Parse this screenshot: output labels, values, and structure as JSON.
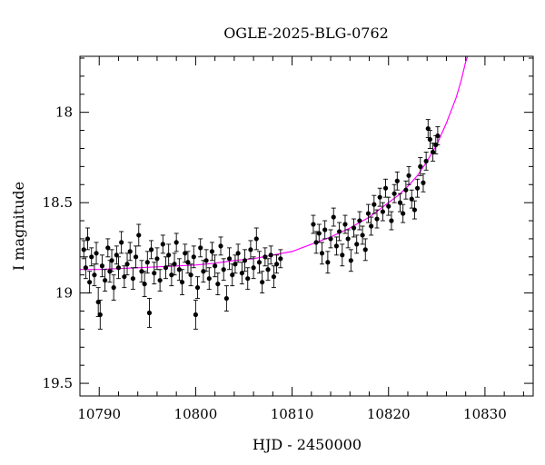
{
  "chart_data": {
    "type": "scatter",
    "title": "OGLE-2025-BLG-0762",
    "xlabel": "HJD - 2450000",
    "ylabel": "I magnitude",
    "xlim": [
      10788,
      10835
    ],
    "ylim": [
      19.57,
      17.69
    ],
    "y_inverted": true,
    "xticks": [
      10790,
      10800,
      10810,
      10820,
      10830
    ],
    "xtick_labels": [
      "10790",
      "10800",
      "10810",
      "10820",
      "10830"
    ],
    "yticks": [
      18,
      18.5,
      19,
      19.5
    ],
    "ytick_labels": [
      "18",
      "18.5",
      "19",
      "19.5"
    ],
    "grid": false,
    "colors": {
      "points": "#000000",
      "model": "#ff00ff",
      "frame": "#000000"
    },
    "series": [
      {
        "kind": "points-with-errorbars",
        "points": [
          [
            10788.4,
            18.76,
            0.05
          ],
          [
            10788.6,
            18.86,
            0.06
          ],
          [
            10788.8,
            18.7,
            0.06
          ],
          [
            10789.0,
            18.94,
            0.06
          ],
          [
            10789.2,
            18.8,
            0.05
          ],
          [
            10789.5,
            18.9,
            0.06
          ],
          [
            10789.7,
            18.78,
            0.06
          ],
          [
            10789.9,
            19.05,
            0.08
          ],
          [
            10790.1,
            19.12,
            0.08
          ],
          [
            10790.3,
            18.85,
            0.06
          ],
          [
            10790.6,
            18.93,
            0.06
          ],
          [
            10790.9,
            18.75,
            0.05
          ],
          [
            10791.1,
            18.88,
            0.06
          ],
          [
            10791.3,
            18.82,
            0.06
          ],
          [
            10791.5,
            18.97,
            0.07
          ],
          [
            10791.8,
            18.79,
            0.05
          ],
          [
            10792.0,
            18.86,
            0.06
          ],
          [
            10792.3,
            18.72,
            0.06
          ],
          [
            10792.6,
            18.91,
            0.06
          ],
          [
            10792.9,
            18.84,
            0.06
          ],
          [
            10793.2,
            18.77,
            0.05
          ],
          [
            10793.5,
            18.92,
            0.06
          ],
          [
            10793.8,
            18.8,
            0.06
          ],
          [
            10794.1,
            18.68,
            0.06
          ],
          [
            10794.4,
            18.88,
            0.06
          ],
          [
            10794.7,
            18.95,
            0.07
          ],
          [
            10795.0,
            18.83,
            0.06
          ],
          [
            10795.2,
            19.11,
            0.08
          ],
          [
            10795.4,
            18.76,
            0.05
          ],
          [
            10795.7,
            18.89,
            0.06
          ],
          [
            10796.0,
            18.81,
            0.06
          ],
          [
            10796.3,
            18.93,
            0.06
          ],
          [
            10796.6,
            18.73,
            0.05
          ],
          [
            10796.9,
            18.86,
            0.06
          ],
          [
            10797.2,
            18.79,
            0.06
          ],
          [
            10797.5,
            18.9,
            0.06
          ],
          [
            10797.8,
            18.84,
            0.06
          ],
          [
            10798.0,
            18.72,
            0.05
          ],
          [
            10798.3,
            18.87,
            0.06
          ],
          [
            10798.6,
            18.94,
            0.07
          ],
          [
            10798.9,
            18.78,
            0.05
          ],
          [
            10799.2,
            18.83,
            0.06
          ],
          [
            10799.5,
            18.9,
            0.06
          ],
          [
            10799.8,
            18.8,
            0.06
          ],
          [
            10800.0,
            19.12,
            0.08
          ],
          [
            10800.2,
            18.97,
            0.06
          ],
          [
            10800.5,
            18.75,
            0.05
          ],
          [
            10800.8,
            18.88,
            0.06
          ],
          [
            10801.1,
            18.82,
            0.06
          ],
          [
            10801.4,
            18.92,
            0.06
          ],
          [
            10801.7,
            18.77,
            0.05
          ],
          [
            10802.0,
            18.85,
            0.06
          ],
          [
            10802.3,
            18.95,
            0.06
          ],
          [
            10802.6,
            18.74,
            0.05
          ],
          [
            10802.9,
            18.87,
            0.06
          ],
          [
            10803.2,
            19.03,
            0.07
          ],
          [
            10803.5,
            18.81,
            0.06
          ],
          [
            10803.8,
            18.9,
            0.06
          ],
          [
            10804.1,
            18.84,
            0.05
          ],
          [
            10804.4,
            18.78,
            0.05
          ],
          [
            10804.8,
            18.89,
            0.06
          ],
          [
            10805.1,
            18.82,
            0.06
          ],
          [
            10805.4,
            18.92,
            0.06
          ],
          [
            10805.7,
            18.76,
            0.05
          ],
          [
            10806.0,
            18.86,
            0.06
          ],
          [
            10806.3,
            18.7,
            0.06
          ],
          [
            10806.6,
            18.83,
            0.06
          ],
          [
            10806.9,
            18.94,
            0.06
          ],
          [
            10807.2,
            18.8,
            0.05
          ],
          [
            10807.5,
            18.87,
            0.06
          ],
          [
            10807.8,
            18.79,
            0.05
          ],
          [
            10808.1,
            18.91,
            0.06
          ],
          [
            10808.4,
            18.84,
            0.05
          ],
          [
            10808.8,
            18.81,
            0.05
          ],
          [
            10812.2,
            18.62,
            0.05
          ],
          [
            10812.5,
            18.72,
            0.06
          ],
          [
            10812.8,
            18.67,
            0.05
          ],
          [
            10813.1,
            18.78,
            0.06
          ],
          [
            10813.4,
            18.65,
            0.05
          ],
          [
            10813.7,
            18.83,
            0.06
          ],
          [
            10814.0,
            18.7,
            0.05
          ],
          [
            10814.3,
            18.58,
            0.05
          ],
          [
            10814.6,
            18.74,
            0.05
          ],
          [
            10814.9,
            18.66,
            0.05
          ],
          [
            10815.2,
            18.79,
            0.06
          ],
          [
            10815.5,
            18.62,
            0.05
          ],
          [
            10815.8,
            18.7,
            0.05
          ],
          [
            10816.1,
            18.82,
            0.06
          ],
          [
            10816.4,
            18.64,
            0.05
          ],
          [
            10816.7,
            18.73,
            0.05
          ],
          [
            10817.0,
            18.6,
            0.05
          ],
          [
            10817.3,
            18.68,
            0.05
          ],
          [
            10817.6,
            18.76,
            0.06
          ],
          [
            10817.9,
            18.56,
            0.05
          ],
          [
            10818.2,
            18.63,
            0.05
          ],
          [
            10818.5,
            18.51,
            0.05
          ],
          [
            10818.8,
            18.59,
            0.05
          ],
          [
            10819.1,
            18.47,
            0.05
          ],
          [
            10819.4,
            18.55,
            0.05
          ],
          [
            10819.7,
            18.42,
            0.05
          ],
          [
            10820.0,
            18.52,
            0.05
          ],
          [
            10820.3,
            18.6,
            0.05
          ],
          [
            10820.6,
            18.45,
            0.05
          ],
          [
            10820.9,
            18.38,
            0.05
          ],
          [
            10821.2,
            18.5,
            0.05
          ],
          [
            10821.5,
            18.56,
            0.05
          ],
          [
            10821.8,
            18.43,
            0.05
          ],
          [
            10822.1,
            18.35,
            0.05
          ],
          [
            10822.4,
            18.48,
            0.05
          ],
          [
            10822.7,
            18.54,
            0.05
          ],
          [
            10823.0,
            18.42,
            0.05
          ],
          [
            10823.3,
            18.3,
            0.05
          ],
          [
            10823.6,
            18.39,
            0.05
          ],
          [
            10823.9,
            18.27,
            0.05
          ],
          [
            10824.1,
            18.09,
            0.05
          ],
          [
            10824.3,
            18.15,
            0.05
          ],
          [
            10824.6,
            18.22,
            0.05
          ],
          [
            10824.9,
            18.18,
            0.05
          ],
          [
            10825.1,
            18.13,
            0.05
          ]
        ]
      },
      {
        "kind": "model-curve",
        "points": [
          [
            10788,
            18.87
          ],
          [
            10790,
            18.87
          ],
          [
            10792,
            18.865
          ],
          [
            10794,
            18.86
          ],
          [
            10796,
            18.855
          ],
          [
            10798,
            18.85
          ],
          [
            10800,
            18.845
          ],
          [
            10802,
            18.835
          ],
          [
            10804,
            18.82
          ],
          [
            10806,
            18.81
          ],
          [
            10808,
            18.79
          ],
          [
            10810,
            18.77
          ],
          [
            10812,
            18.73
          ],
          [
            10814,
            18.69
          ],
          [
            10816,
            18.64
          ],
          [
            10817,
            18.61
          ],
          [
            10818,
            18.58
          ],
          [
            10819,
            18.54
          ],
          [
            10820,
            18.5
          ],
          [
            10821,
            18.46
          ],
          [
            10822,
            18.41
          ],
          [
            10823,
            18.35
          ],
          [
            10824,
            18.27
          ],
          [
            10825,
            18.18
          ],
          [
            10826,
            18.06
          ],
          [
            10827,
            17.92
          ],
          [
            10827.5,
            17.83
          ],
          [
            10828,
            17.72
          ],
          [
            10828.2,
            17.69
          ]
        ]
      }
    ]
  }
}
